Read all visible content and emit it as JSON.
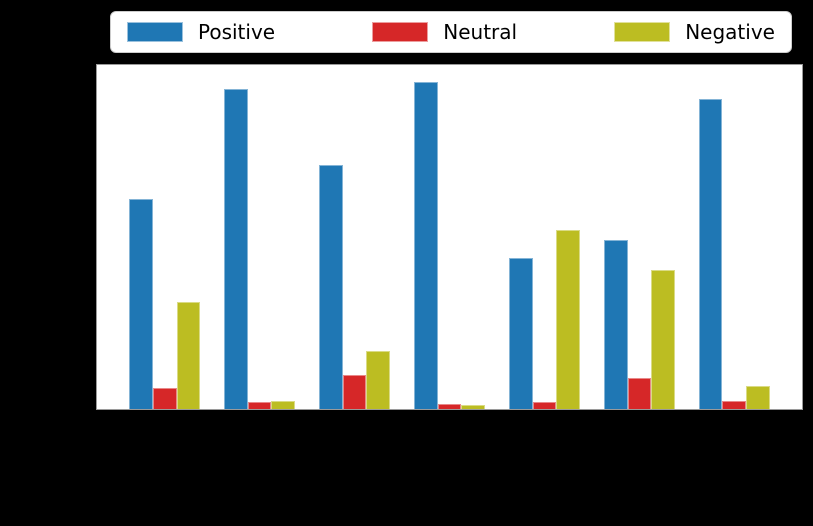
{
  "figure": {
    "background": "#000000",
    "plot_face_color": "#ffffff",
    "spine_color": "#9a9a9a"
  },
  "legend": {
    "position": "top",
    "background": "#ffffff",
    "border_color": "#cccccc",
    "entries": [
      {
        "label": "Positive",
        "color": "#1f77b4"
      },
      {
        "label": "Neutral",
        "color": "#d62728"
      },
      {
        "label": "Negative",
        "color": "#bcbd22"
      }
    ]
  },
  "chart_data": {
    "type": "bar",
    "title": "",
    "xlabel": "",
    "ylabel": "",
    "categories": [
      "",
      "",
      "",
      "",
      "",
      "",
      ""
    ],
    "xtick_labels_visible": false,
    "ytick_labels_visible": false,
    "grid": false,
    "legend_position": "top",
    "series": [
      {
        "name": "Positive",
        "color": "#1f77b4",
        "values": [
          0.61,
          0.93,
          0.71,
          0.95,
          0.44,
          0.49,
          0.9
        ]
      },
      {
        "name": "Neutral",
        "color": "#d62728",
        "values": [
          0.06,
          0.02,
          0.1,
          0.016,
          0.02,
          0.09,
          0.023
        ]
      },
      {
        "name": "Negative",
        "color": "#bcbd22",
        "values": [
          0.31,
          0.024,
          0.17,
          0.013,
          0.52,
          0.405,
          0.067
        ]
      }
    ],
    "group_positions": [
      0,
      1,
      2,
      3,
      4,
      5,
      6
    ],
    "bar_width": 0.25,
    "xlim": [
      -0.7125,
      6.7125
    ],
    "ylim": [
      0,
      1.0
    ]
  }
}
